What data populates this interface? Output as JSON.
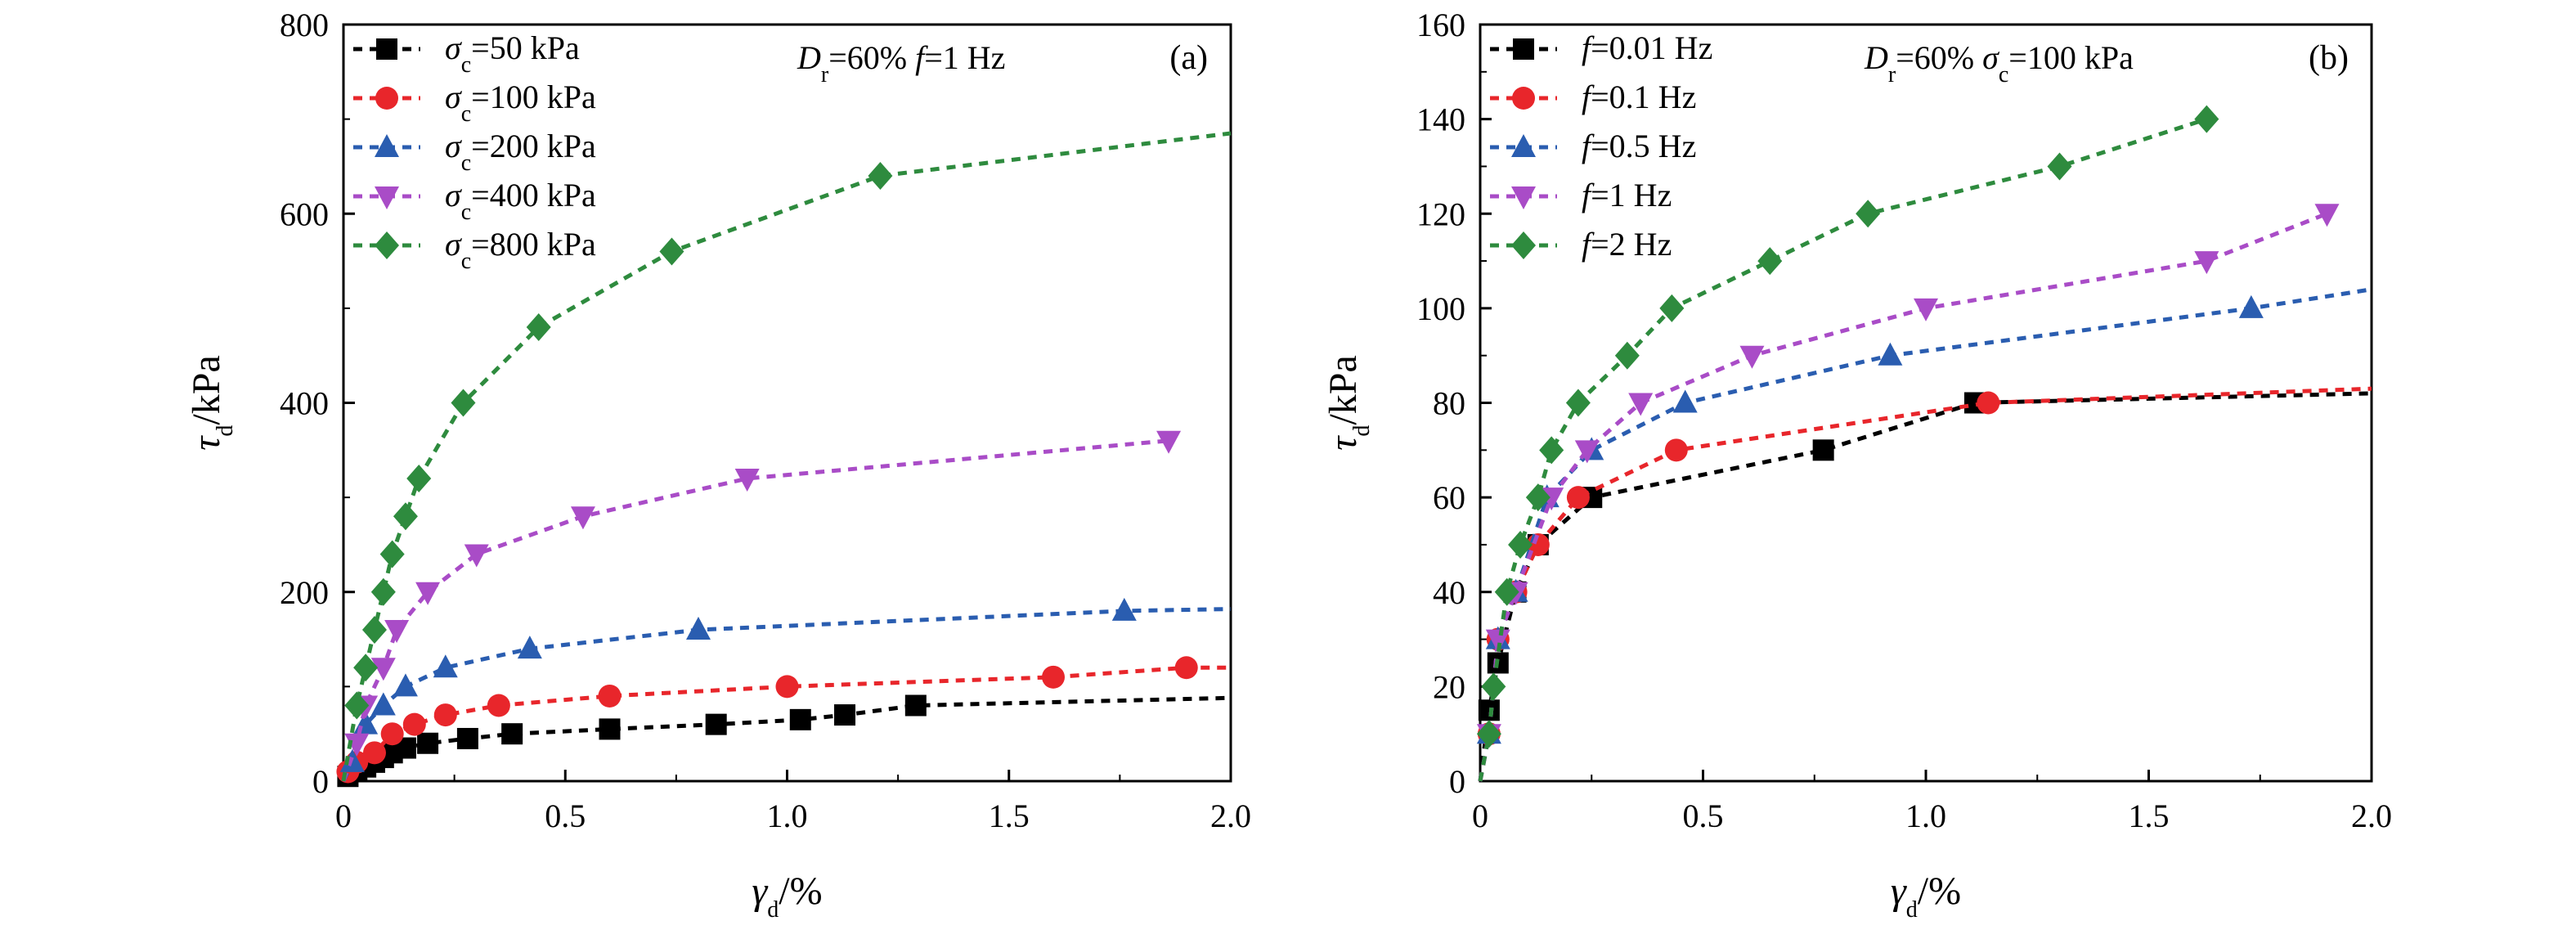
{
  "chart_data": [
    {
      "type": "line",
      "panel": "(a)",
      "annotation": {
        "d_main": "D",
        "d_sub": "r",
        "d_rest": "=60%  ",
        "f_main": "f",
        "f_rest": "=1 Hz"
      },
      "xlabel": {
        "main": "γ",
        "sub": "d",
        "rest": "/%"
      },
      "ylabel": {
        "main": "τ",
        "sub": "d",
        "rest": "/kPa"
      },
      "xlim": [
        0,
        2.0
      ],
      "ylim": [
        0,
        800
      ],
      "xticks": [
        "0",
        "0.5",
        "1.0",
        "1.5",
        "2.0"
      ],
      "xtick_values": [
        0,
        0.5,
        1.0,
        1.5,
        2.0
      ],
      "yticks": [
        "0",
        "200",
        "400",
        "600",
        "800"
      ],
      "ytick_values": [
        0,
        200,
        400,
        600,
        800
      ],
      "grid": false,
      "legend_position": "top-left",
      "series": [
        {
          "label_main": "σ",
          "label_sub": "c",
          "label_rest": "=50 kPa",
          "color": "#000000",
          "marker": "square",
          "x": [
            0.01,
            0.03,
            0.05,
            0.07,
            0.09,
            0.11,
            0.14,
            0.19,
            0.28,
            0.38,
            0.6,
            0.84,
            1.03,
            1.13,
            1.29
          ],
          "y": [
            5,
            10,
            15,
            20,
            25,
            30,
            35,
            40,
            45,
            50,
            55,
            60,
            65,
            70,
            80
          ],
          "trend_end": [
            2.0,
            88
          ]
        },
        {
          "label_main": "σ",
          "label_sub": "c",
          "label_rest": "=100 kPa",
          "color": "#e8262b",
          "marker": "circle",
          "x": [
            0.01,
            0.03,
            0.07,
            0.11,
            0.16,
            0.23,
            0.35,
            0.6,
            1.0,
            1.6,
            1.9
          ],
          "y": [
            10,
            20,
            30,
            50,
            60,
            70,
            80,
            90,
            100,
            110,
            120
          ],
          "trend_end": [
            2.0,
            120
          ]
        },
        {
          "label_main": "σ",
          "label_sub": "c",
          "label_rest": "=200 kPa",
          "color": "#2a5db0",
          "marker": "triangle-up",
          "x": [
            0.02,
            0.05,
            0.09,
            0.14,
            0.23,
            0.42,
            0.8,
            1.76
          ],
          "y": [
            20,
            60,
            80,
            100,
            120,
            140,
            160,
            180
          ],
          "trend_end": [
            2.0,
            182
          ]
        },
        {
          "label_main": "σ",
          "label_sub": "c",
          "label_rest": "=400 kPa",
          "color": "#a94cc7",
          "marker": "triangle-down",
          "x": [
            0.03,
            0.05,
            0.09,
            0.12,
            0.19,
            0.3,
            0.54,
            0.91,
            1.86
          ],
          "y": [
            40,
            80,
            120,
            160,
            200,
            240,
            280,
            320,
            360
          ],
          "trend_end": [
            1.86,
            360
          ]
        },
        {
          "label_main": "σ",
          "label_sub": "c",
          "label_rest": "=800 kPa",
          "color": "#2e8b3e",
          "marker": "diamond",
          "x": [
            0.03,
            0.05,
            0.07,
            0.09,
            0.11,
            0.14,
            0.17,
            0.27,
            0.44,
            0.74,
            1.21
          ],
          "y": [
            80,
            120,
            160,
            200,
            240,
            280,
            320,
            400,
            480,
            560,
            640
          ],
          "trend_end": [
            2.0,
            685
          ]
        }
      ]
    },
    {
      "type": "line",
      "panel": "(b)",
      "annotation": {
        "d_main": "D",
        "d_sub": "r",
        "d_rest": "=60%  ",
        "s_main": "σ",
        "s_sub": "c",
        "s_rest": "=100 kPa"
      },
      "xlabel": {
        "main": "γ",
        "sub": "d",
        "rest": "/%"
      },
      "ylabel": {
        "main": "τ",
        "sub": "d",
        "rest": "/kPa"
      },
      "xlim": [
        0,
        2.0
      ],
      "ylim": [
        0,
        160
      ],
      "xticks": [
        "0",
        "0.5",
        "1.0",
        "1.5",
        "2.0"
      ],
      "xtick_values": [
        0,
        0.5,
        1.0,
        1.5,
        2.0
      ],
      "yticks": [
        "0",
        "20",
        "40",
        "60",
        "80",
        "100",
        "120",
        "140",
        "160"
      ],
      "ytick_values": [
        0,
        20,
        40,
        60,
        80,
        100,
        120,
        140,
        160
      ],
      "grid": false,
      "legend_position": "top-left",
      "series": [
        {
          "label_main": "f",
          "label_rest": "=0.01 Hz",
          "color": "#000000",
          "marker": "square",
          "x": [
            0.02,
            0.04,
            0.08,
            0.13,
            0.25,
            0.77,
            1.11
          ],
          "y": [
            15,
            25,
            40,
            50,
            60,
            70,
            80
          ],
          "trend_end": [
            2.0,
            82
          ]
        },
        {
          "label_main": "f",
          "label_rest": "=0.1 Hz",
          "color": "#e8262b",
          "marker": "circle",
          "x": [
            0.02,
            0.04,
            0.08,
            0.13,
            0.22,
            0.44,
            1.14
          ],
          "y": [
            10,
            30,
            40,
            50,
            60,
            70,
            80
          ],
          "trend_end": [
            2.0,
            83
          ]
        },
        {
          "label_main": "f",
          "label_rest": "=0.5 Hz",
          "color": "#2a5db0",
          "marker": "triangle-up",
          "x": [
            0.02,
            0.04,
            0.08,
            0.15,
            0.25,
            0.46,
            0.92,
            1.73
          ],
          "y": [
            10,
            30,
            40,
            60,
            70,
            80,
            90,
            100
          ],
          "trend_end": [
            2.0,
            104
          ]
        },
        {
          "label_main": "f",
          "label_rest": "=1 Hz",
          "color": "#a94cc7",
          "marker": "triangle-down",
          "x": [
            0.02,
            0.04,
            0.08,
            0.16,
            0.24,
            0.36,
            0.61,
            1.0,
            1.63,
            1.9
          ],
          "y": [
            10,
            30,
            40,
            60,
            70,
            80,
            90,
            100,
            110,
            120
          ],
          "trend_end": [
            1.9,
            120
          ]
        },
        {
          "label_main": "f",
          "label_rest": "=2 Hz",
          "color": "#2e8b3e",
          "marker": "diamond",
          "x": [
            0.02,
            0.03,
            0.06,
            0.09,
            0.13,
            0.16,
            0.22,
            0.33,
            0.43,
            0.65,
            0.87,
            1.3,
            1.63
          ],
          "y": [
            10,
            20,
            40,
            50,
            60,
            70,
            80,
            90,
            100,
            110,
            120,
            130,
            140
          ],
          "trend_end": [
            1.63,
            140
          ]
        }
      ]
    }
  ]
}
